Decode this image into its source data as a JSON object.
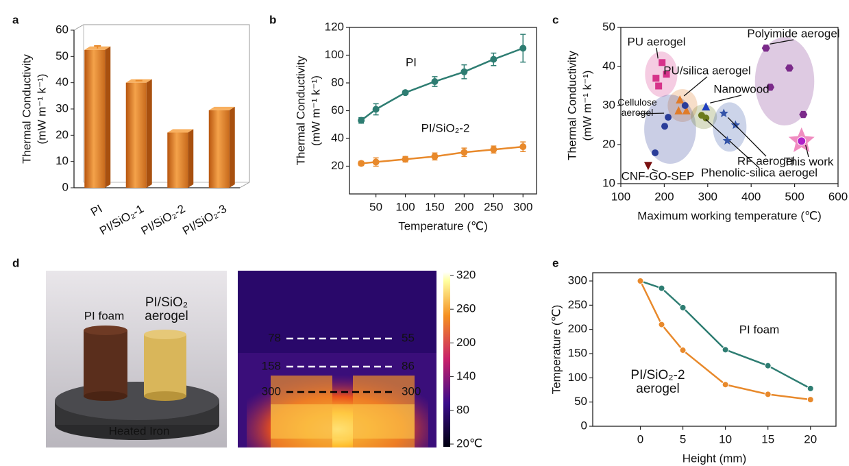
{
  "chart_data": [
    {
      "type": "bar",
      "panel": "a",
      "ylabel": [
        "Thermal Conductivity",
        "(mW m⁻¹ k⁻¹)"
      ],
      "categories": [
        "PI",
        "PI/SiO₂-1",
        "PI/SiO₂-2",
        "PI/SiO₂-3"
      ],
      "values": [
        52.5,
        40,
        21,
        29.5
      ],
      "errors": [
        1.5,
        0.8,
        null,
        null
      ],
      "color": "#e8892b",
      "ylim": [
        0,
        60
      ],
      "yticks": [
        0,
        10,
        20,
        30,
        40,
        50,
        60
      ]
    },
    {
      "type": "line",
      "panel": "b",
      "xlabel": "Temperature (℃)",
      "ylabel": [
        "Thermal Conductivity",
        "(mW m⁻¹ k⁻¹)"
      ],
      "x": [
        25,
        50,
        100,
        150,
        200,
        250,
        300
      ],
      "series": [
        {
          "name": "PI",
          "color": "#2e7d72",
          "values": [
            53,
            61,
            73,
            81,
            88,
            97,
            105
          ],
          "errors": [
            2,
            4,
            1.5,
            3.5,
            5,
            4.5,
            10
          ]
        },
        {
          "name": "PI/SiO₂-2",
          "color": "#e8892b",
          "values": [
            22,
            23,
            25,
            27,
            30,
            32,
            34
          ],
          "errors": [
            1.5,
            3,
            2,
            2.5,
            3,
            2.5,
            3.5
          ]
        }
      ],
      "xlim": [
        5,
        323
      ],
      "xticks": [
        50,
        100,
        150,
        200,
        250,
        300
      ],
      "ylim": [
        0,
        120
      ],
      "yticks": [
        20,
        40,
        60,
        80,
        100,
        120
      ]
    },
    {
      "type": "scatter",
      "panel": "c",
      "xlabel": "Maximum working temperature (℃)",
      "ylabel": [
        "Thermal Conductivity",
        "(mW m⁻¹ k⁻¹)"
      ],
      "series": [
        {
          "name": "PU aerogel",
          "color": "#d6338a",
          "marker": "square",
          "x": [
            195,
            205,
            181,
            187
          ],
          "y": [
            41,
            38,
            37,
            35
          ]
        },
        {
          "name": "Polyimide aerogel",
          "color": "#7b2a8a",
          "marker": "hexagon",
          "x": [
            434,
            488,
            444,
            520
          ],
          "y": [
            44.7,
            39.6,
            34.7,
            27.7
          ]
        },
        {
          "name": "PU/silica aerogel",
          "color": "#e07b28",
          "marker": "triangle",
          "x": [
            236,
            233,
            251
          ],
          "y": [
            31.4,
            28.6,
            28.6
          ]
        },
        {
          "name": "Cellulose aerogel",
          "color": "#2a3d99",
          "marker": "circle",
          "x": [
            209,
            201,
            179,
            248
          ],
          "y": [
            27,
            24.7,
            17.9,
            30
          ]
        },
        {
          "name": "Nanowood",
          "color": "#1f3fbf",
          "marker": "triangle",
          "x": [
            296
          ],
          "y": [
            29.6
          ]
        },
        {
          "name": "Phenolic-silica aerogel",
          "color": "#6b7a1e",
          "marker": "circle",
          "x": [
            286,
            296
          ],
          "y": [
            27.5,
            26.8
          ]
        },
        {
          "name": "RF aerogel",
          "color": "#3454a8",
          "marker": "star",
          "x": [
            337,
            364,
            345
          ],
          "y": [
            28,
            25,
            21
          ]
        },
        {
          "name": "CNF-GO-SEP",
          "color": "#7a1010",
          "marker": "triangle-down",
          "x": [
            163
          ],
          "y": [
            14.7
          ]
        },
        {
          "name": "This work",
          "color": "#f08cc0",
          "marker": "star-ball",
          "x": [
            516
          ],
          "y": [
            20.9
          ]
        }
      ],
      "xlim": [
        100,
        600
      ],
      "xticks": [
        100,
        200,
        300,
        400,
        500,
        600
      ],
      "ylim": [
        10,
        50
      ],
      "yticks": [
        10,
        20,
        30,
        40,
        50
      ]
    },
    {
      "type": "image",
      "panel": "d",
      "photo_labels": [
        "PI foam",
        "PI/SiO₂ aerogel",
        "Heated Iron"
      ],
      "thermal_readings": [
        [
          78,
          55
        ],
        [
          158,
          86
        ],
        [
          300,
          300
        ]
      ],
      "colorbar": {
        "lim": [
          20,
          320
        ],
        "ticks": [
          {
            "value": 20,
            "label": "20℃"
          },
          80,
          140,
          200,
          260,
          320
        ]
      }
    },
    {
      "type": "line",
      "panel": "e",
      "xlabel": "Height (mm)",
      "ylabel": [
        "Temperature (℃)"
      ],
      "x": [
        0,
        2.5,
        5,
        10,
        15,
        20
      ],
      "series": [
        {
          "name": "PI foam",
          "color": "#2e7d72",
          "values": [
            300,
            285,
            245,
            158,
            125,
            78
          ]
        },
        {
          "name": "PI/SiO₂-2 aerogel",
          "color": "#e8892b",
          "values": [
            300,
            210,
            157,
            86,
            66,
            55
          ]
        }
      ],
      "xlim": [
        -5.6,
        23
      ],
      "xticks": [
        0,
        5,
        10,
        15,
        20
      ],
      "ylim": [
        0,
        317
      ],
      "yticks": [
        0,
        50,
        100,
        150,
        200,
        250,
        300
      ]
    }
  ]
}
